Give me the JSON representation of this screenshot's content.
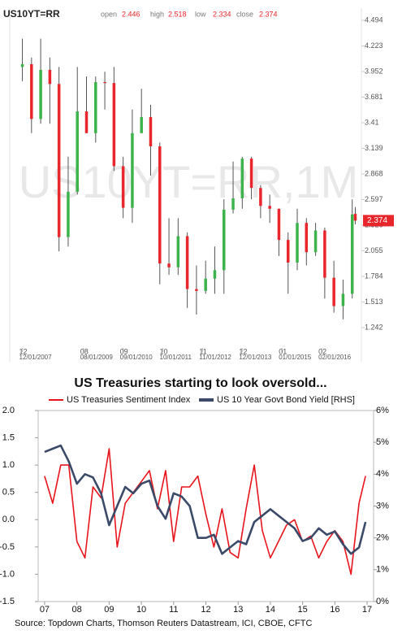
{
  "chart_data": [
    {
      "type": "candlestick",
      "title": "US10YT=RR",
      "watermark": "US10YT=RR,1M",
      "ohlc_labels": [
        "open",
        "high",
        "low",
        "close"
      ],
      "up_color": "#3cb44b",
      "down_color": "#e8262b",
      "x": [
        "12/01/2007",
        "03/01/2008",
        "06/01/2008",
        "09/01/2008",
        "12/01/2008",
        "03/01/2009",
        "06/01/2009",
        "09/01/2009",
        "12/01/2009",
        "03/01/2010",
        "06/01/2010",
        "09/01/2010",
        "12/01/2010",
        "03/01/2011",
        "06/01/2011",
        "09/01/2011",
        "12/01/2011",
        "03/01/2012",
        "06/01/2012",
        "09/01/2012",
        "12/01/2012",
        "03/01/2013",
        "06/01/2013",
        "09/01/2013",
        "12/01/2013",
        "03/01/2014",
        "06/01/2014",
        "09/01/2014",
        "12/01/2014",
        "03/01/2015",
        "06/01/2015",
        "09/01/2015",
        "12/01/2015",
        "03/01/2016",
        "06/01/2016",
        "09/01/2016",
        "12/01/2016",
        "01/01/2017"
      ],
      "open": [
        4.0,
        4.03,
        3.45,
        3.97,
        3.82,
        2.2,
        2.68,
        3.53,
        3.3,
        3.84,
        3.83,
        2.95,
        2.51,
        3.3,
        3.47,
        3.16,
        1.92,
        1.88,
        2.21,
        1.65,
        1.63,
        1.76,
        1.85,
        2.49,
        2.61,
        3.03,
        2.72,
        2.53,
        2.5,
        2.17,
        1.93,
        2.35,
        2.04,
        2.27,
        1.77,
        1.47,
        1.6,
        2.446
      ],
      "high": [
        4.3,
        4.1,
        4.3,
        4.1,
        4.0,
        3.05,
        4.0,
        3.9,
        3.9,
        3.95,
        4.0,
        3.05,
        3.55,
        3.77,
        3.6,
        3.2,
        2.4,
        2.4,
        2.25,
        1.9,
        1.95,
        2.1,
        2.6,
        3.0,
        3.05,
        3.05,
        2.75,
        2.65,
        2.5,
        2.25,
        2.5,
        2.4,
        2.35,
        2.3,
        1.95,
        1.75,
        2.6,
        2.518
      ],
      "low": [
        3.85,
        3.3,
        3.4,
        3.4,
        2.05,
        2.1,
        2.65,
        3.3,
        3.2,
        3.55,
        2.9,
        2.4,
        2.35,
        3.3,
        2.85,
        1.7,
        1.8,
        1.8,
        1.45,
        1.38,
        1.6,
        1.6,
        1.6,
        2.45,
        2.5,
        2.6,
        2.4,
        2.35,
        2.0,
        1.6,
        1.85,
        1.9,
        2.0,
        1.55,
        1.4,
        1.33,
        1.55,
        2.334
      ],
      "close": [
        4.03,
        3.45,
        3.97,
        3.82,
        2.2,
        2.68,
        3.53,
        3.3,
        3.84,
        3.83,
        2.95,
        2.51,
        3.3,
        3.47,
        3.16,
        1.92,
        1.88,
        2.21,
        1.65,
        1.63,
        1.76,
        1.85,
        2.49,
        2.61,
        3.03,
        2.72,
        2.53,
        2.5,
        2.17,
        1.93,
        2.35,
        2.04,
        2.27,
        1.77,
        1.47,
        1.6,
        2.44,
        2.374
      ],
      "xlim": [
        "10/01/2007",
        "03/01/2017"
      ],
      "xticks": [
        {
          "label": "12",
          "value": "12/01/2007"
        },
        {
          "label": "08",
          "value": "08/01/2009"
        },
        {
          "label": "09",
          "value": "09/01/2010"
        },
        {
          "label": "10",
          "value": "10/01/2011"
        },
        {
          "label": "11",
          "value": "11/01/2012"
        },
        {
          "label": "12",
          "value": "12/01/2013"
        },
        {
          "label": "01",
          "value": "01/01/2015"
        },
        {
          "label": "02",
          "value": "02/01/2016"
        }
      ],
      "ylim": [
        1.027,
        4.623
      ],
      "yticks": [
        4.494,
        4.223,
        3.952,
        3.681,
        3.41,
        3.139,
        2.868,
        2.597,
        2.326,
        2.055,
        1.784,
        1.513,
        1.242
      ]
    },
    {
      "type": "line",
      "title": "US Treasuries starting to look oversold...",
      "source": "Source: Topdown Charts, Thomson Reuters Datastream, ICI, CBOE, CFTC",
      "x": [
        2007.0,
        2007.25,
        2007.5,
        2007.75,
        2008.0,
        2008.25,
        2008.5,
        2008.75,
        2009.0,
        2009.25,
        2009.5,
        2009.75,
        2010.0,
        2010.25,
        2010.5,
        2010.75,
        2011.0,
        2011.25,
        2011.5,
        2011.75,
        2012.0,
        2012.25,
        2012.5,
        2012.75,
        2013.0,
        2013.25,
        2013.5,
        2013.75,
        2014.0,
        2014.25,
        2014.5,
        2014.75,
        2015.0,
        2015.25,
        2015.5,
        2015.75,
        2016.0,
        2016.25,
        2016.5,
        2016.75,
        2016.95
      ],
      "series": [
        {
          "name": "US Treasuries Sentiment Index",
          "color": "#e8141c",
          "values": [
            0.8,
            0.3,
            1.0,
            1.0,
            -0.4,
            -0.7,
            0.6,
            0.4,
            1.3,
            -0.5,
            0.3,
            0.5,
            0.7,
            0.9,
            0.2,
            0.9,
            -0.4,
            0.6,
            0.6,
            0.8,
            0.1,
            -0.5,
            0.2,
            -0.6,
            -0.7,
            0.2,
            1.0,
            -0.2,
            -0.7,
            -0.4,
            -0.1,
            0.0,
            -0.4,
            -0.3,
            -0.7,
            -0.4,
            -0.2,
            -0.4,
            -1.0,
            0.3,
            0.8
          ]
        },
        {
          "name": "US 10 Year Govt Bond Yield [RHS]",
          "color": "#3b4a68",
          "axis": "y2",
          "values": [
            4.7,
            4.8,
            4.9,
            4.4,
            3.7,
            4.0,
            3.9,
            3.4,
            2.4,
            3.0,
            3.6,
            3.4,
            3.7,
            3.8,
            3.0,
            2.6,
            3.4,
            3.3,
            3.0,
            2.0,
            2.0,
            2.1,
            1.5,
            1.7,
            1.9,
            1.8,
            2.5,
            2.7,
            2.9,
            2.7,
            2.5,
            2.3,
            1.9,
            2.0,
            2.3,
            2.1,
            2.2,
            1.8,
            1.5,
            1.7,
            2.5
          ]
        }
      ],
      "xlim": [
        2006.8,
        2017.2
      ],
      "xticks": [
        {
          "value": 2007,
          "label": "07"
        },
        {
          "value": 2008,
          "label": "08"
        },
        {
          "value": 2009,
          "label": "09"
        },
        {
          "value": 2010,
          "label": "10"
        },
        {
          "value": 2011,
          "label": "11"
        },
        {
          "value": 2012,
          "label": "12"
        },
        {
          "value": 2013,
          "label": "13"
        },
        {
          "value": 2014,
          "label": "14"
        },
        {
          "value": 2015,
          "label": "15"
        },
        {
          "value": 2016,
          "label": "16"
        },
        {
          "value": 2017,
          "label": "17"
        }
      ],
      "ylim": [
        -1.5,
        2.0
      ],
      "yticks": [
        {
          "value": 2.0,
          "label": "2.0"
        },
        1.5,
        {
          "value": 1.0,
          "label": "1.0"
        },
        0.5,
        {
          "value": 0.0,
          "label": "0.0"
        },
        -0.5,
        {
          "value": -1.0,
          "label": "-1.0"
        },
        -1.5
      ],
      "y2lim": [
        0,
        6
      ],
      "y2ticks": [
        {
          "value": 6,
          "label": "6%"
        },
        {
          "value": 5,
          "label": "5%"
        },
        {
          "value": 4,
          "label": "4%"
        },
        {
          "value": 3,
          "label": "3%"
        },
        {
          "value": 2,
          "label": "2%"
        },
        {
          "value": 1,
          "label": "1%"
        },
        {
          "value": 0,
          "label": "0%"
        }
      ]
    }
  ]
}
